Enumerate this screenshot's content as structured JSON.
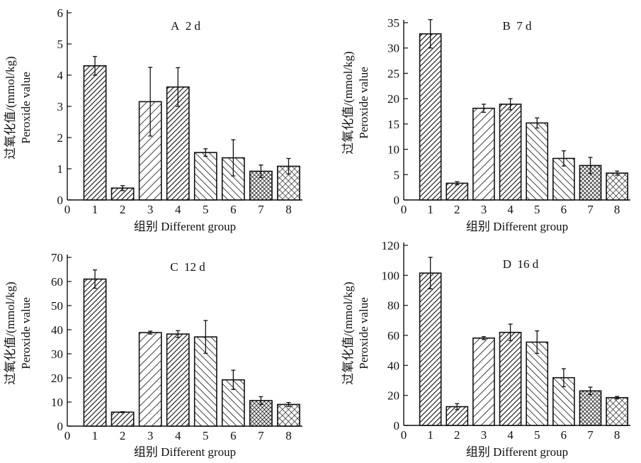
{
  "chart_data": [
    {
      "type": "bar",
      "title": "A 2 d",
      "ylabel_cn": "过氧化值/(mmol/kg)",
      "ylabel_en": "Peroxide value",
      "xlabel": "组别 Different group",
      "x_origin_label": "0",
      "categories": [
        "1",
        "2",
        "3",
        "4",
        "5",
        "6",
        "7",
        "8"
      ],
      "values": [
        4.3,
        0.38,
        3.15,
        3.62,
        1.52,
        1.35,
        0.92,
        1.08
      ],
      "errors": [
        0.3,
        0.08,
        1.1,
        0.62,
        0.12,
        0.58,
        0.2,
        0.25
      ],
      "ylim": [
        0,
        6
      ],
      "yticks": [
        0,
        1,
        2,
        3,
        4,
        5,
        6
      ],
      "patterns": [
        "hatch-fwd-dense",
        "hatch-fwd-dense",
        "hatch-fwd",
        "hatch-fwd-dense",
        "hatch-back",
        "hatch-back",
        "grid-dense",
        "grid"
      ],
      "grid": false
    },
    {
      "type": "bar",
      "title": "B 7 d",
      "ylabel_cn": "过氧化值/(mmol/kg)",
      "ylabel_en": "Peroxide value",
      "xlabel": "组别 Different group",
      "x_origin_label": "0",
      "categories": [
        "1",
        "2",
        "3",
        "4",
        "5",
        "6",
        "7",
        "8"
      ],
      "values": [
        32.8,
        3.3,
        18.1,
        18.9,
        15.2,
        8.2,
        6.8,
        5.3
      ],
      "errors": [
        2.8,
        0.3,
        0.8,
        1.1,
        1.0,
        1.5,
        1.6,
        0.4
      ],
      "ylim": [
        0,
        35
      ],
      "yticks": [
        0,
        5,
        10,
        15,
        20,
        25,
        30,
        35
      ],
      "patterns": [
        "hatch-fwd-dense",
        "hatch-fwd-dense",
        "hatch-fwd",
        "hatch-fwd-dense",
        "hatch-back",
        "hatch-back",
        "grid-dense",
        "grid"
      ],
      "grid": false
    },
    {
      "type": "bar",
      "title": "C 12 d",
      "ylabel_cn": "过氧化值/(mmol/kg)",
      "ylabel_en": "Peroxide value",
      "xlabel": "组别 Different group",
      "x_origin_label": "0",
      "categories": [
        "1",
        "2",
        "3",
        "4",
        "5",
        "6",
        "7",
        "8"
      ],
      "values": [
        61.0,
        5.8,
        38.8,
        38.2,
        37.0,
        19.2,
        10.6,
        9.0
      ],
      "errors": [
        3.8,
        0.2,
        0.6,
        1.4,
        6.8,
        4.0,
        1.6,
        0.8
      ],
      "ylim": [
        0,
        70
      ],
      "yticks": [
        0,
        10,
        20,
        30,
        40,
        50,
        60,
        70
      ],
      "patterns": [
        "hatch-fwd-dense",
        "hatch-fwd-dense",
        "hatch-fwd",
        "hatch-fwd-dense",
        "hatch-back",
        "hatch-back",
        "grid-dense",
        "grid"
      ],
      "grid": false
    },
    {
      "type": "bar",
      "title": "D 16 d",
      "ylabel_cn": "过氧化值/(mmol/kg)",
      "ylabel_en": "Peroxide value",
      "xlabel": "组别 Different group",
      "x_origin_label": "0",
      "categories": [
        "1",
        "2",
        "3",
        "4",
        "5",
        "6",
        "7",
        "8"
      ],
      "values": [
        101.5,
        12.5,
        58.2,
        62.0,
        55.5,
        31.8,
        23.0,
        18.5
      ],
      "errors": [
        10.5,
        2.0,
        1.0,
        5.5,
        7.5,
        6.0,
        2.5,
        0.8
      ],
      "ylim": [
        0,
        120
      ],
      "yticks": [
        0,
        20,
        40,
        60,
        80,
        100,
        120
      ],
      "patterns": [
        "hatch-fwd-dense",
        "hatch-fwd-dense",
        "hatch-fwd",
        "hatch-fwd-dense",
        "hatch-back",
        "hatch-back",
        "grid-dense",
        "grid"
      ],
      "grid": false
    }
  ]
}
